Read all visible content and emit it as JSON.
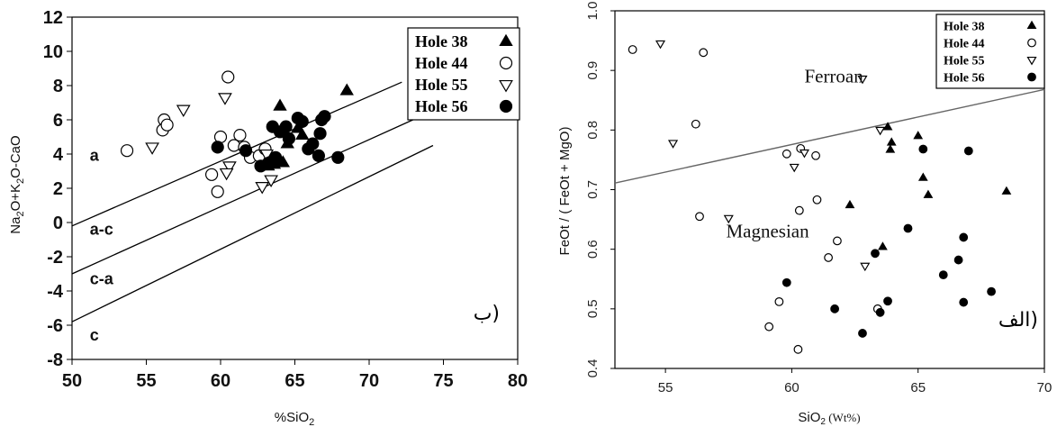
{
  "chart_data": [
    {
      "type": "scatter",
      "panel_label": "ب)",
      "xlabel_parts": [
        "%SiO",
        "2"
      ],
      "ylabel_parts": [
        "Na",
        "2",
        "O+K",
        "2",
        "O-CaO"
      ],
      "xlim": [
        50,
        80
      ],
      "ylim": [
        -8,
        12
      ],
      "xticks": [
        50,
        55,
        60,
        65,
        70,
        75,
        80
      ],
      "yticks": [
        -8,
        -6,
        -4,
        -2,
        0,
        2,
        4,
        6,
        8,
        10,
        12
      ],
      "grid": false,
      "legend_position": "top-right",
      "field_labels": [
        {
          "text": "a",
          "x": 51.2,
          "y": 3.6
        },
        {
          "text": "a-c",
          "x": 51.2,
          "y": -0.7
        },
        {
          "text": "c-a",
          "x": 51.2,
          "y": -3.6
        },
        {
          "text": "c",
          "x": 51.2,
          "y": -6.9
        }
      ],
      "boundary_lines": [
        {
          "x": [
            50,
            72.2
          ],
          "y": [
            -0.2,
            8.2
          ]
        },
        {
          "x": [
            50,
            73.2
          ],
          "y": [
            -3.0,
            6.1
          ]
        },
        {
          "x": [
            50,
            74.3
          ],
          "y": [
            -5.8,
            4.5
          ]
        }
      ],
      "series": [
        {
          "name": "Hole 38",
          "marker": "triangle-filled",
          "x": [
            63.2,
            63.6,
            63.8,
            64.2,
            64.5,
            65.2,
            65.5,
            68.5,
            64.0
          ],
          "y": [
            3.3,
            3.4,
            3.6,
            3.5,
            4.6,
            5.5,
            5.1,
            7.7,
            6.8
          ]
        },
        {
          "name": "Hole 44",
          "marker": "circle-open",
          "x": [
            53.7,
            56.1,
            56.2,
            56.4,
            59.4,
            59.8,
            60.0,
            60.5,
            60.9,
            61.3,
            61.6,
            62.0,
            62.6,
            63.0
          ],
          "y": [
            4.2,
            5.4,
            6.0,
            5.7,
            2.8,
            1.8,
            5.0,
            8.5,
            4.5,
            5.1,
            4.4,
            3.8,
            3.9,
            4.3
          ]
        },
        {
          "name": "Hole 55",
          "marker": "triangle-open",
          "x": [
            55.4,
            57.5,
            60.3,
            60.6,
            60.4,
            62.8,
            63.4,
            63.1
          ],
          "y": [
            4.4,
            6.6,
            7.3,
            3.3,
            2.9,
            2.1,
            2.5,
            4.0
          ]
        },
        {
          "name": "Hole 56",
          "marker": "circle-filled",
          "x": [
            59.8,
            61.7,
            62.7,
            63.3,
            63.5,
            63.7,
            64.0,
            64.4,
            64.6,
            65.2,
            65.5,
            65.9,
            66.2,
            66.6,
            66.7,
            66.8,
            67.0,
            67.9
          ],
          "y": [
            4.4,
            4.2,
            3.3,
            3.5,
            5.6,
            3.8,
            5.3,
            5.6,
            4.9,
            6.1,
            5.9,
            4.3,
            4.6,
            3.9,
            5.2,
            6.0,
            6.2,
            3.8
          ]
        }
      ]
    },
    {
      "type": "scatter",
      "panel_label": "الف)",
      "xlabel_parts": [
        "SiO",
        "2",
        " (Wt%)"
      ],
      "ylabel": "FeOt / ( FeOt + MgO)",
      "xlim": [
        53,
        70
      ],
      "ylim": [
        0.4,
        1.0
      ],
      "xticks": [
        55,
        60,
        65,
        70
      ],
      "yticks": [
        0.4,
        0.5,
        0.6,
        0.7,
        0.8,
        0.9,
        1.0
      ],
      "grid": false,
      "legend_position": "top-right",
      "regions": [
        {
          "text": "Ferroan",
          "x": 60.5,
          "y": 0.88
        },
        {
          "text": "Magnesian",
          "x": 57.4,
          "y": 0.62
        }
      ],
      "boundary_lines": [
        {
          "x": [
            53,
            70
          ],
          "y": [
            0.711,
            0.868
          ]
        }
      ],
      "series": [
        {
          "name": "Hole 38",
          "marker": "triangle-filled",
          "x": [
            62.3,
            63.6,
            63.8,
            63.9,
            63.95,
            65.0,
            65.2,
            65.4,
            68.5
          ],
          "y": [
            0.674,
            0.604,
            0.805,
            0.767,
            0.779,
            0.79,
            0.72,
            0.691,
            0.697
          ]
        },
        {
          "name": "Hole 44",
          "marker": "circle-open",
          "x": [
            53.7,
            56.2,
            56.35,
            56.5,
            59.1,
            59.5,
            59.8,
            60.25,
            60.3,
            60.35,
            60.95,
            61.0,
            61.45,
            61.8,
            63.4
          ],
          "y": [
            0.935,
            0.81,
            0.655,
            0.93,
            0.47,
            0.512,
            0.76,
            0.432,
            0.665,
            0.769,
            0.757,
            0.683,
            0.586,
            0.614,
            0.5
          ]
        },
        {
          "name": "Hole 55",
          "marker": "triangle-open",
          "x": [
            54.8,
            55.3,
            57.5,
            60.1,
            60.5,
            62.8,
            62.9,
            63.5
          ],
          "y": [
            0.945,
            0.778,
            0.652,
            0.738,
            0.762,
            0.886,
            0.572,
            0.8
          ]
        },
        {
          "name": "Hole 56",
          "marker": "circle-filled",
          "x": [
            59.8,
            61.7,
            62.8,
            63.3,
            63.5,
            63.8,
            64.6,
            65.2,
            66.0,
            66.6,
            66.8,
            66.8,
            67.0,
            67.9
          ],
          "y": [
            0.544,
            0.5,
            0.459,
            0.593,
            0.494,
            0.513,
            0.635,
            0.768,
            0.557,
            0.582,
            0.62,
            0.511,
            0.765,
            0.529
          ]
        }
      ]
    }
  ]
}
